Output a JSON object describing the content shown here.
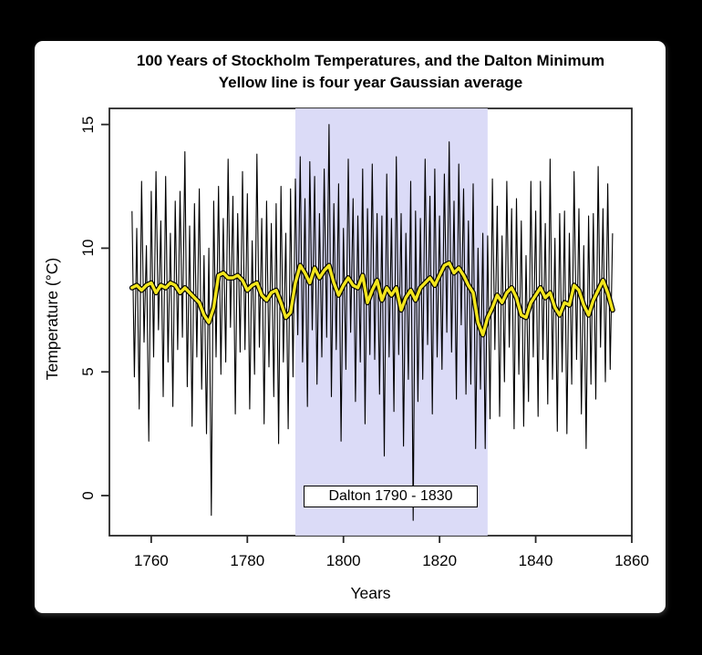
{
  "window": {
    "background": "#000000",
    "card_background": "#ffffff"
  },
  "chart_data": {
    "type": "line",
    "title": "100 Years of Stockholm Temperatures, and the Dalton Minimum",
    "subtitle": "Yellow line is four year Gaussian average",
    "xlabel": "Years",
    "ylabel": "Temperature (°C)",
    "x_ticks": [
      1760,
      1780,
      1800,
      1820,
      1840,
      1860
    ],
    "y_ticks": [
      0,
      5,
      10,
      15
    ],
    "xlim": [
      1751.3,
      1860
    ],
    "ylim": [
      -1.62,
      15.65
    ],
    "grid": false,
    "legend": "none",
    "band": {
      "from": 1790,
      "to": 1830,
      "color": "#d8d8f6",
      "opacity": 0.92,
      "label": "Dalton 1790 - 1830",
      "label_x": 1810,
      "label_y": 0
    },
    "series": [
      {
        "name": "stockholm temperatures",
        "color": "#000000",
        "width": 1.1,
        "x_start": 1756,
        "x_step": 0.5,
        "values": [
          11.5,
          4.8,
          10.8,
          3.5,
          12.7,
          6.2,
          10.1,
          2.2,
          12.3,
          5.6,
          13.1,
          6.7,
          11.1,
          4.0,
          12.9,
          5.4,
          10.6,
          3.6,
          11.9,
          5.9,
          12.3,
          6.4,
          13.9,
          4.4,
          10.9,
          2.8,
          11.8,
          5.6,
          12.4,
          4.3,
          9.7,
          2.5,
          10.0,
          -0.8,
          11.9,
          5.6,
          12.5,
          4.9,
          11.2,
          5.4,
          13.6,
          6.8,
          12.1,
          3.3,
          11.4,
          5.8,
          13.1,
          5.9,
          12.2,
          3.5,
          10.3,
          4.9,
          13.8,
          6.0,
          11.2,
          2.9,
          11.9,
          5.2,
          11.0,
          4.0,
          11.8,
          2.1,
          12.5,
          5.4,
          10.6,
          2.7,
          12.4,
          4.8,
          12.8,
          6.5,
          13.7,
          5.4,
          12.0,
          3.6,
          13.5,
          6.7,
          12.9,
          4.5,
          11.4,
          5.6,
          13.2,
          6.4,
          15.0,
          4.0,
          11.8,
          5.9,
          12.6,
          2.2,
          10.8,
          5.1,
          13.6,
          6.6,
          12.0,
          3.8,
          11.3,
          5.4,
          13.2,
          2.9,
          11.6,
          5.7,
          13.4,
          5.5,
          11.4,
          4.1,
          11.3,
          1.6,
          13.0,
          5.6,
          11.2,
          3.4,
          13.7,
          5.7,
          11.4,
          2.0,
          10.6,
          4.7,
          12.7,
          -1.0,
          11.5,
          3.8,
          11.2,
          4.7,
          13.6,
          6.1,
          12.1,
          3.3,
          13.2,
          5.6,
          11.3,
          5.1,
          13.0,
          6.6,
          14.3,
          5.8,
          11.9,
          3.9,
          13.4,
          6.9,
          12.4,
          4.1,
          11.1,
          4.5,
          12.6,
          1.9,
          10.0,
          4.3,
          10.6,
          1.9,
          10.5,
          3.1,
          12.8,
          5.9,
          11.7,
          3.2,
          10.5,
          4.6,
          12.7,
          6.0,
          11.6,
          2.7,
          12.0,
          4.9,
          11.1,
          2.8,
          9.7,
          3.8,
          12.7,
          5.6,
          11.5,
          3.2,
          12.7,
          5.5,
          11.0,
          3.7,
          13.6,
          4.7,
          10.4,
          2.6,
          11.4,
          5.0,
          11.5,
          2.5,
          10.6,
          4.5,
          13.1,
          5.5,
          11.6,
          3.3,
          10.1,
          1.9,
          11.3,
          4.5,
          11.4,
          3.9,
          13.3,
          6.0,
          11.6,
          4.6,
          12.6,
          5.1,
          10.6
        ]
      },
      {
        "name": "four year Gaussian average",
        "color": "#f2e51d",
        "outline_color": "#000000",
        "width": 3.4,
        "x_start": 1756,
        "x_step": 1,
        "values": [
          8.4,
          8.5,
          8.3,
          8.5,
          8.6,
          8.2,
          8.5,
          8.4,
          8.6,
          8.5,
          8.2,
          8.4,
          8.2,
          8.0,
          7.8,
          7.3,
          7.0,
          7.6,
          8.9,
          9.0,
          8.8,
          8.8,
          8.9,
          8.7,
          8.3,
          8.5,
          8.6,
          8.1,
          7.9,
          8.2,
          8.3,
          7.8,
          7.2,
          7.4,
          8.6,
          9.3,
          9.0,
          8.6,
          9.2,
          8.8,
          9.1,
          9.3,
          8.6,
          8.1,
          8.5,
          8.8,
          8.5,
          8.4,
          8.9,
          7.8,
          8.3,
          8.7,
          7.9,
          8.4,
          8.1,
          8.4,
          7.5,
          8.0,
          8.3,
          7.9,
          8.4,
          8.6,
          8.8,
          8.5,
          8.9,
          9.3,
          9.4,
          9.0,
          9.2,
          8.9,
          8.5,
          8.2,
          7.0,
          6.5,
          7.2,
          7.6,
          8.1,
          7.8,
          8.2,
          8.4,
          8.0,
          7.3,
          7.2,
          7.8,
          8.1,
          8.4,
          8.0,
          8.2,
          7.6,
          7.3,
          7.8,
          7.7,
          8.5,
          8.3,
          7.7,
          7.3,
          7.9,
          8.3,
          8.7,
          8.2,
          7.5
        ]
      }
    ]
  }
}
